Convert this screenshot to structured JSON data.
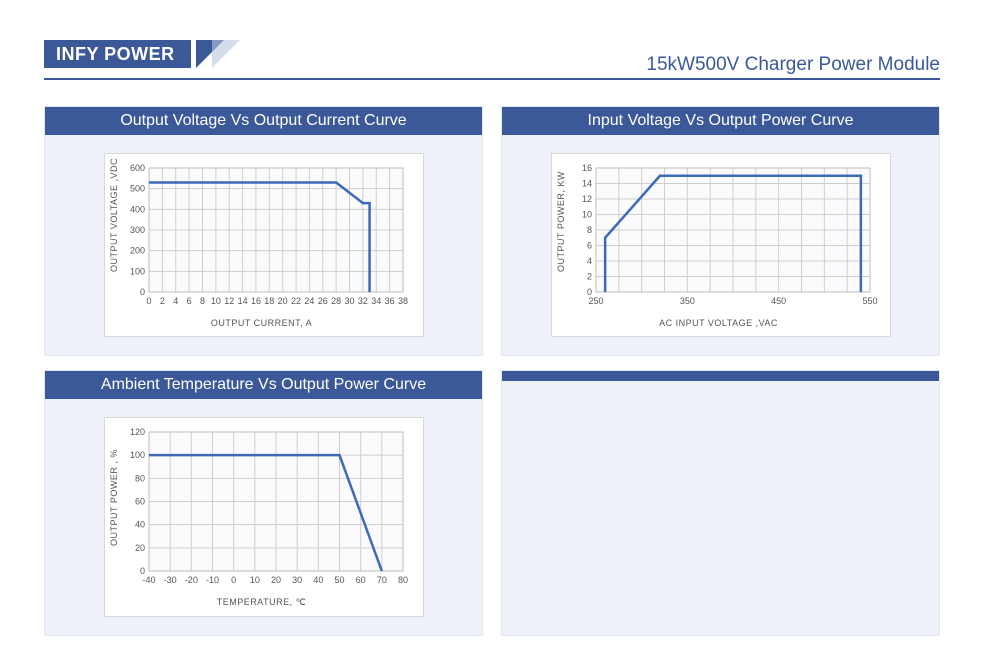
{
  "header": {
    "brand": "INFY POWER",
    "subtitle": "15kW500V Charger Power Module",
    "brand_bg": "#3b5998",
    "brand_fg": "#ffffff",
    "subtitle_color": "#3b5998"
  },
  "layout": {
    "panel_bg": "#eef2f8",
    "panel_title_bg": "#3b5998",
    "panel_title_fg": "#ffffff",
    "chart_bg": "#ffffff",
    "plot_bg": "#fbfbfd",
    "grid_color": "#cfcfcf",
    "line_color": "#3d6ab7",
    "line_width": 2.5,
    "tick_fontsize": 9,
    "label_fontsize": 9
  },
  "charts": {
    "volt_current": {
      "title": "Output Voltage Vs Output Current Curve",
      "type": "line",
      "x_label": "OUTPUT CURRENT, A",
      "y_label": "OUTPUT VOLTAGE ,VDC",
      "xlim": [
        0,
        38
      ],
      "x_ticks": [
        0,
        2,
        4,
        6,
        8,
        10,
        12,
        14,
        16,
        18,
        20,
        22,
        24,
        26,
        28,
        30,
        32,
        34,
        36,
        38
      ],
      "ylim": [
        0,
        600
      ],
      "y_ticks": [
        0,
        100,
        200,
        300,
        400,
        500,
        600
      ],
      "points": [
        [
          0,
          530
        ],
        [
          28,
          530
        ],
        [
          32,
          430
        ],
        [
          33,
          430
        ],
        [
          33,
          0
        ]
      ]
    },
    "in_volt_power": {
      "title": "Input Voltage Vs Output Power Curve",
      "type": "line",
      "x_label": "AC INPUT VOLTAGE ,VAC",
      "y_label": "OUTPUT POWER, KW",
      "xlim": [
        250,
        550
      ],
      "x_ticks": [
        250,
        350,
        450,
        550
      ],
      "x_minor_step": 25,
      "ylim": [
        0,
        16
      ],
      "y_ticks": [
        0,
        2,
        4,
        6,
        8,
        10,
        12,
        14,
        16
      ],
      "points": [
        [
          260,
          0
        ],
        [
          260,
          7
        ],
        [
          320,
          15
        ],
        [
          540,
          15
        ],
        [
          540,
          0
        ]
      ]
    },
    "temp_power": {
      "title": "Ambient Temperature Vs Output Power Curve",
      "type": "line",
      "x_label": "TEMPERATURE, ℃",
      "y_label": "OUTPUT POWER ,  %",
      "xlim": [
        -40,
        80
      ],
      "x_ticks": [
        -40,
        -30,
        -20,
        -10,
        0,
        10,
        20,
        30,
        40,
        50,
        60,
        70,
        80
      ],
      "ylim": [
        0,
        120
      ],
      "y_ticks": [
        0,
        20,
        40,
        60,
        80,
        100,
        120
      ],
      "points": [
        [
          -40,
          100
        ],
        [
          50,
          100
        ],
        [
          70,
          0
        ]
      ]
    },
    "blank": {
      "title": "",
      "type": "blank"
    }
  }
}
